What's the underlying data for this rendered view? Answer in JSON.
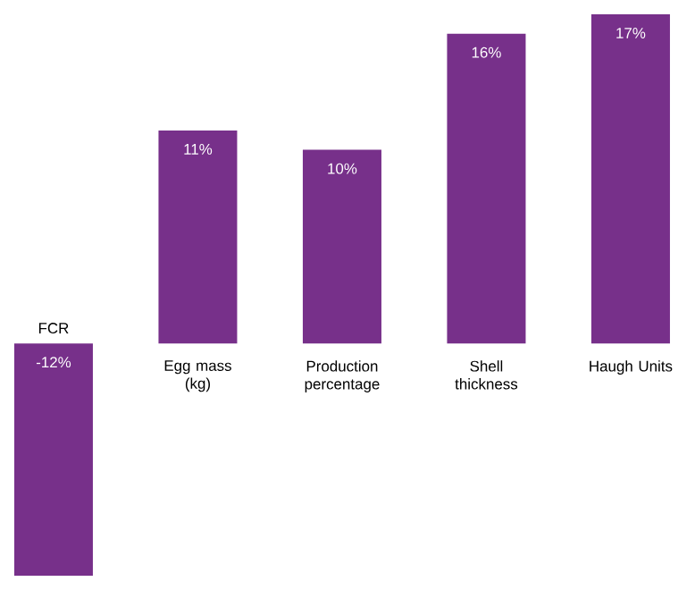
{
  "chart_data": {
    "type": "bar",
    "categories": [
      "FCR",
      "Egg mass (kg)",
      "Production percentage",
      "Shell thickness",
      "Haugh Units"
    ],
    "values": [
      -12,
      11,
      10,
      16,
      17
    ],
    "value_labels": [
      "-12%",
      "11%",
      "10%",
      "16%",
      "17%"
    ],
    "color": "#77308a",
    "ylim": [
      -12,
      17
    ]
  }
}
